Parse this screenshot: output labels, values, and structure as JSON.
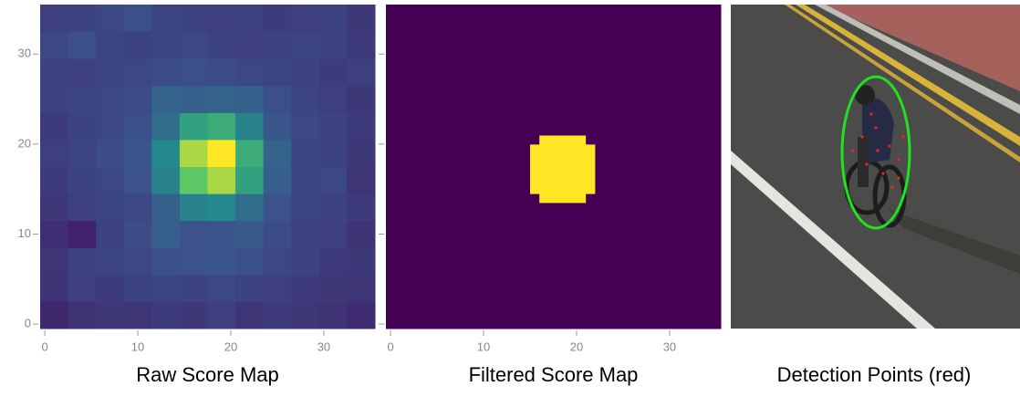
{
  "chart_data": [
    {
      "type": "heatmap",
      "title": "Raw Score Map",
      "colormap": "viridis",
      "zlim": [
        0,
        1
      ],
      "xlim": [
        -0.5,
        35.5
      ],
      "ylim": [
        -0.5,
        35.5
      ],
      "xticks": [
        0,
        10,
        20,
        30
      ],
      "yticks": [
        0,
        10,
        20,
        30
      ],
      "ytick_labels": true,
      "xbins": [
        -0.5,
        2.5,
        5.5,
        8.5,
        11.5,
        14.5,
        17.5,
        20.5,
        23.5,
        26.5,
        29.5,
        32.5,
        35.5
      ],
      "ybins": [
        -0.5,
        2.5,
        5.5,
        8.5,
        11.5,
        14.5,
        17.5,
        20.5,
        23.5,
        26.5,
        29.5,
        32.5,
        35.5
      ],
      "z": [
        [
          0.12,
          0.15,
          0.17,
          0.16,
          0.18,
          0.17,
          0.19,
          0.16,
          0.18,
          0.17,
          0.15,
          0.13
        ],
        [
          0.15,
          0.19,
          0.18,
          0.2,
          0.21,
          0.2,
          0.22,
          0.2,
          0.19,
          0.18,
          0.17,
          0.16
        ],
        [
          0.16,
          0.2,
          0.21,
          0.22,
          0.24,
          0.25,
          0.26,
          0.24,
          0.22,
          0.2,
          0.18,
          0.17
        ],
        [
          0.14,
          0.1,
          0.2,
          0.23,
          0.3,
          0.25,
          0.26,
          0.28,
          0.23,
          0.2,
          0.19,
          0.15
        ],
        [
          0.17,
          0.19,
          0.21,
          0.22,
          0.3,
          0.44,
          0.47,
          0.36,
          0.25,
          0.21,
          0.2,
          0.18
        ],
        [
          0.18,
          0.2,
          0.22,
          0.25,
          0.44,
          0.74,
          0.87,
          0.57,
          0.3,
          0.21,
          0.22,
          0.16
        ],
        [
          0.19,
          0.21,
          0.23,
          0.26,
          0.47,
          0.87,
          1.0,
          0.62,
          0.32,
          0.21,
          0.2,
          0.17
        ],
        [
          0.18,
          0.2,
          0.22,
          0.24,
          0.36,
          0.57,
          0.62,
          0.44,
          0.27,
          0.22,
          0.2,
          0.18
        ],
        [
          0.2,
          0.21,
          0.22,
          0.23,
          0.32,
          0.3,
          0.32,
          0.3,
          0.24,
          0.21,
          0.19,
          0.17
        ],
        [
          0.2,
          0.19,
          0.21,
          0.22,
          0.23,
          0.24,
          0.23,
          0.22,
          0.21,
          0.2,
          0.18,
          0.19
        ],
        [
          0.22,
          0.24,
          0.21,
          0.2,
          0.21,
          0.22,
          0.2,
          0.19,
          0.2,
          0.21,
          0.2,
          0.18
        ],
        [
          0.19,
          0.2,
          0.22,
          0.24,
          0.21,
          0.2,
          0.19,
          0.2,
          0.18,
          0.19,
          0.2,
          0.17
        ]
      ]
    },
    {
      "type": "heatmap",
      "title": "Filtered Score Map",
      "colormap": "viridis",
      "zlim": [
        0,
        1
      ],
      "xlim": [
        -0.5,
        35.5
      ],
      "ylim": [
        -0.5,
        35.5
      ],
      "xticks": [
        0,
        10,
        20,
        30
      ],
      "yticks": [
        0,
        10,
        20,
        30
      ],
      "ytick_labels": false,
      "xbins": [
        -0.5,
        15,
        16,
        21,
        22,
        35.5
      ],
      "ybins": [
        -0.5,
        13.5,
        14.5,
        20,
        21,
        35.5
      ],
      "z": [
        [
          0,
          0,
          0,
          0,
          0
        ],
        [
          0,
          0,
          1,
          0,
          0
        ],
        [
          0,
          1,
          1,
          1,
          0
        ],
        [
          0,
          0,
          1,
          0,
          0
        ],
        [
          0,
          0,
          0,
          0,
          0
        ]
      ]
    }
  ],
  "image": {
    "caption": "Detection Points (red)"
  }
}
